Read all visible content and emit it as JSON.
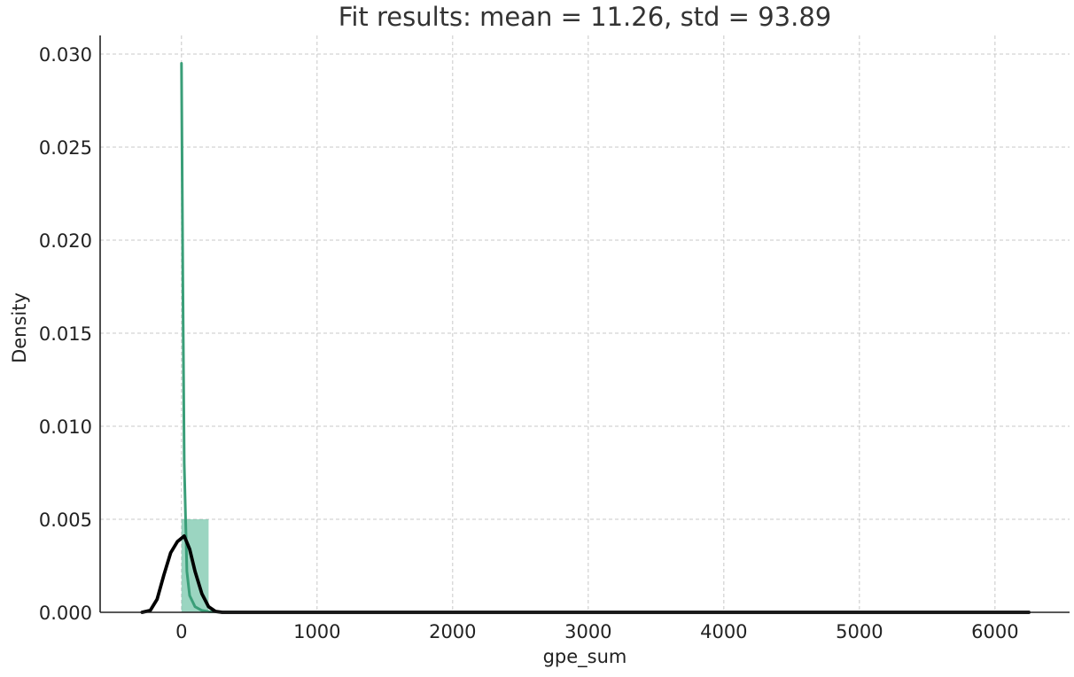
{
  "chart_data": {
    "type": "histogram",
    "title": "Fit results: mean = 11.26,  std = 93.89",
    "xlabel": "gpe_sum",
    "ylabel": "Density",
    "xlim": [
      -600,
      6550
    ],
    "ylim": [
      0,
      0.031
    ],
    "xticks": [
      0,
      1000,
      2000,
      3000,
      4000,
      5000,
      6000
    ],
    "xtick_labels": [
      "0",
      "1000",
      "2000",
      "3000",
      "4000",
      "5000",
      "6000"
    ],
    "yticks": [
      0,
      0.005,
      0.01,
      0.015,
      0.02,
      0.025,
      0.03
    ],
    "ytick_labels": [
      "0.000",
      "0.005",
      "0.010",
      "0.015",
      "0.020",
      "0.025",
      "0.030"
    ],
    "grid": true,
    "histogram": {
      "bins": [
        {
          "x0": 0,
          "x1": 200,
          "density": 0.005
        }
      ],
      "color": "#66bfa0"
    },
    "series": [
      {
        "style": "kde",
        "color": "#3a9e78",
        "x": [
          0,
          10,
          20,
          40,
          60,
          100,
          150,
          200,
          300,
          500,
          1000,
          3000,
          6250
        ],
        "y": [
          0.0295,
          0.018,
          0.008,
          0.0022,
          0.0009,
          0.0003,
          0.0001,
          4e-05,
          1e-05,
          0.0,
          0.0,
          0.0,
          0.0
        ]
      },
      {
        "style": "fitted-normal",
        "color": "#000000",
        "x": [
          -290,
          -230,
          -180,
          -130,
          -80,
          -30,
          20,
          60,
          100,
          150,
          200,
          250,
          300,
          400,
          500,
          1000,
          2000,
          3000,
          4000,
          5000,
          6250
        ],
        "y": [
          0.0,
          0.0001,
          0.0007,
          0.002,
          0.0032,
          0.0038,
          0.0041,
          0.0034,
          0.0022,
          0.001,
          0.0003,
          5e-05,
          0.0,
          0.0,
          0.0,
          0.0,
          0.0,
          0.0,
          0.0,
          0.0,
          0.0
        ]
      }
    ]
  }
}
